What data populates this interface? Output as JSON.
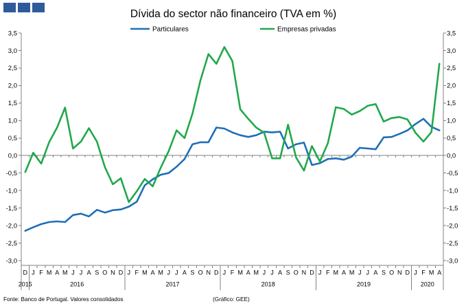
{
  "header": {
    "logo_icon": "logo-squares-icon",
    "logo_color": "#2e5b9b"
  },
  "chart_data": {
    "type": "line",
    "title": "Dívida do sector não financeiro (TVA em %)",
    "legend": "top-center",
    "grid": false,
    "ylim": [
      -3.0,
      3.5
    ],
    "y_tick_labels": [
      "3,5",
      "3,0",
      "2,5",
      "2,0",
      "1,5",
      "1,0",
      "0,5",
      "0,0",
      "-0,5",
      "-1,0",
      "-1,5",
      "-2,0",
      "-2,5",
      "-3,0"
    ],
    "x_axis": {
      "groups": [
        {
          "year": "2015",
          "months": [
            "D"
          ]
        },
        {
          "year": "2016",
          "months": [
            "J",
            "F",
            "M",
            "A",
            "M",
            "J",
            "J",
            "A",
            "S",
            "O",
            "N",
            "D"
          ]
        },
        {
          "year": "2017",
          "months": [
            "J",
            "F",
            "M",
            "A",
            "M",
            "J",
            "J",
            "A",
            "S",
            "O",
            "N",
            "D"
          ]
        },
        {
          "year": "2018",
          "months": [
            "J",
            "F",
            "M",
            "A",
            "M",
            "J",
            "J",
            "A",
            "S",
            "O",
            "N",
            "D"
          ]
        },
        {
          "year": "2019",
          "months": [
            "J",
            "F",
            "M",
            "A",
            "M",
            "J",
            "J",
            "A",
            "S",
            "O",
            "N",
            "D"
          ]
        },
        {
          "year": "2020",
          "months": [
            "J",
            "F",
            "M",
            "A"
          ]
        }
      ]
    },
    "series": [
      {
        "name": "Particulares",
        "color": "#1f6fb7",
        "values": [
          -2.15,
          -2.05,
          -1.96,
          -1.9,
          -1.88,
          -1.9,
          -1.7,
          -1.66,
          -1.74,
          -1.55,
          -1.63,
          -1.56,
          -1.54,
          -1.46,
          -1.32,
          -0.85,
          -0.68,
          -0.55,
          -0.5,
          -0.32,
          -0.1,
          0.32,
          0.38,
          0.38,
          0.8,
          0.77,
          0.66,
          0.58,
          0.53,
          0.58,
          0.68,
          0.66,
          0.68,
          0.2,
          0.32,
          0.37,
          -0.27,
          -0.22,
          -0.1,
          -0.08,
          -0.12,
          -0.03,
          0.22,
          0.2,
          0.18,
          0.52,
          0.53,
          0.62,
          0.72,
          0.9,
          1.05,
          0.82,
          0.72
        ]
      },
      {
        "name": "Empresas privadas",
        "color": "#21a84a",
        "values": [
          -0.47,
          0.08,
          -0.23,
          0.38,
          0.8,
          1.37,
          0.2,
          0.4,
          0.78,
          0.4,
          -0.33,
          -0.82,
          -0.65,
          -1.33,
          -1.02,
          -0.67,
          -0.88,
          -0.35,
          0.12,
          0.72,
          0.5,
          1.2,
          2.15,
          2.9,
          2.62,
          3.1,
          2.7,
          1.32,
          1.05,
          0.8,
          0.65,
          -0.08,
          -0.08,
          0.88,
          -0.05,
          -0.43,
          0.27,
          -0.17,
          0.35,
          1.38,
          1.33,
          1.17,
          1.27,
          1.42,
          1.47,
          0.97,
          1.07,
          1.1,
          1.03,
          0.65,
          0.4,
          0.67,
          2.62
        ]
      }
    ]
  },
  "footer": {
    "source": "Fonte: Banco de Portugal. Valores consolidados",
    "credit": "(Gráfico: GEE)"
  }
}
